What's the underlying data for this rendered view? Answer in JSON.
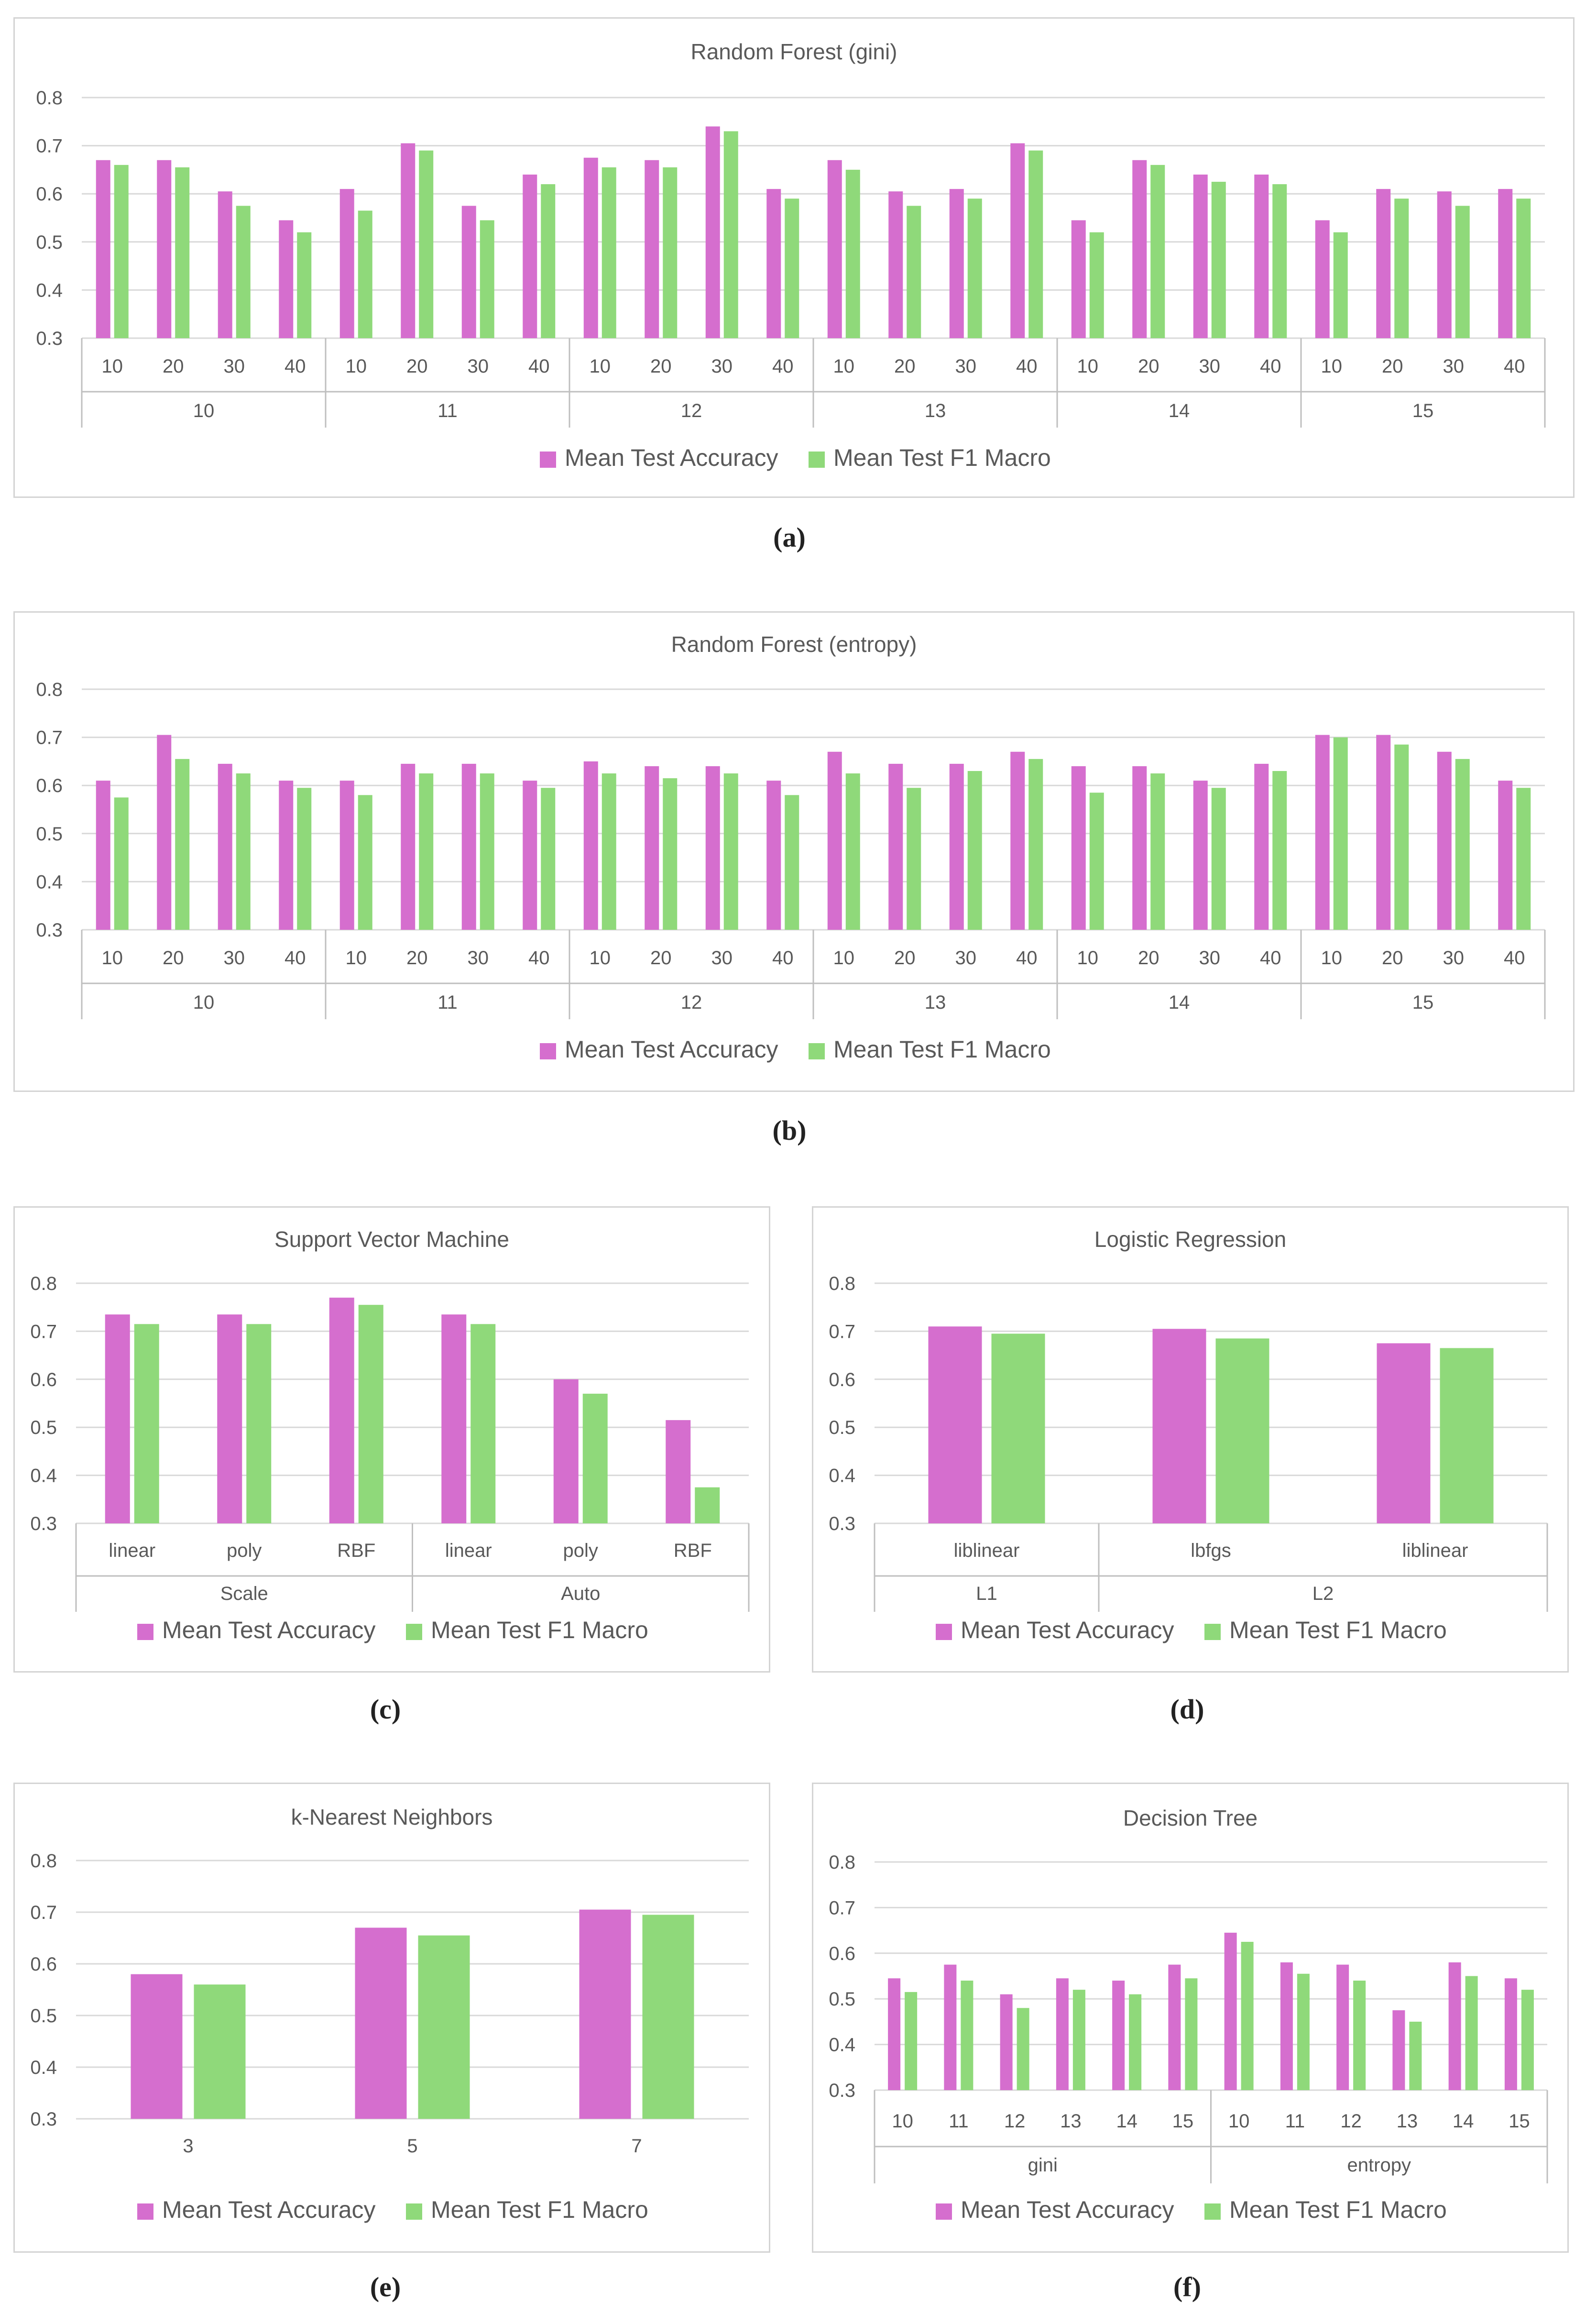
{
  "colors": {
    "accuracy": "#d56ece",
    "f1": "#8fd97a",
    "grid": "#d9d9d9",
    "text": "#595959",
    "axis": "#bfbfbf"
  },
  "legend": {
    "accuracy": "Mean Test Accuracy",
    "f1": "Mean Test F1 Macro"
  },
  "captions": {
    "a": "(a)",
    "b": "(b)",
    "c": "(c)",
    "d": "(d)",
    "e": "(e)",
    "f": "(f)"
  },
  "chart_data": [
    {
      "id": "a",
      "type": "bar",
      "title": "Random Forest (gini)",
      "ylim": [
        0.3,
        0.8
      ],
      "yticks": [
        "0.3",
        "0.4",
        "0.5",
        "0.6",
        "0.7",
        "0.8"
      ],
      "categories": [
        "10",
        "20",
        "30",
        "40",
        "10",
        "20",
        "30",
        "40",
        "10",
        "20",
        "30",
        "40",
        "10",
        "20",
        "30",
        "40",
        "10",
        "20",
        "30",
        "40",
        "10",
        "20",
        "30",
        "40"
      ],
      "groups": [
        "10",
        "11",
        "12",
        "13",
        "14",
        "15"
      ],
      "series": [
        {
          "name": "Mean Test Accuracy",
          "values": [
            0.67,
            0.67,
            0.605,
            0.545,
            0.61,
            0.705,
            0.575,
            0.64,
            0.675,
            0.67,
            0.74,
            0.61,
            0.67,
            0.605,
            0.61,
            0.705,
            0.545,
            0.67,
            0.64,
            0.64,
            0.545,
            0.61,
            0.605,
            0.61
          ]
        },
        {
          "name": "Mean Test F1 Macro",
          "values": [
            0.66,
            0.655,
            0.575,
            0.52,
            0.565,
            0.69,
            0.545,
            0.62,
            0.655,
            0.655,
            0.73,
            0.59,
            0.65,
            0.575,
            0.59,
            0.69,
            0.52,
            0.66,
            0.625,
            0.62,
            0.52,
            0.59,
            0.575,
            0.59
          ]
        }
      ]
    },
    {
      "id": "b",
      "type": "bar",
      "title": "Random Forest (entropy)",
      "ylim": [
        0.3,
        0.8
      ],
      "yticks": [
        "0.3",
        "0.4",
        "0.5",
        "0.6",
        "0.7",
        "0.8"
      ],
      "categories": [
        "10",
        "20",
        "30",
        "40",
        "10",
        "20",
        "30",
        "40",
        "10",
        "20",
        "30",
        "40",
        "10",
        "20",
        "30",
        "40",
        "10",
        "20",
        "30",
        "40",
        "10",
        "20",
        "30",
        "40"
      ],
      "groups": [
        "10",
        "11",
        "12",
        "13",
        "14",
        "15"
      ],
      "series": [
        {
          "name": "Mean Test Accuracy",
          "values": [
            0.61,
            0.705,
            0.645,
            0.61,
            0.61,
            0.645,
            0.645,
            0.61,
            0.65,
            0.64,
            0.64,
            0.61,
            0.67,
            0.645,
            0.645,
            0.67,
            0.64,
            0.64,
            0.61,
            0.645,
            0.705,
            0.705,
            0.67,
            0.61
          ]
        },
        {
          "name": "Mean Test F1 Macro",
          "values": [
            0.575,
            0.655,
            0.625,
            0.595,
            0.58,
            0.625,
            0.625,
            0.595,
            0.625,
            0.615,
            0.625,
            0.58,
            0.625,
            0.595,
            0.63,
            0.655,
            0.585,
            0.625,
            0.595,
            0.63,
            0.7,
            0.685,
            0.655,
            0.595
          ]
        }
      ]
    },
    {
      "id": "c",
      "type": "bar",
      "title": "Support Vector Machine",
      "ylim": [
        0.3,
        0.8
      ],
      "yticks": [
        "0.3",
        "0.4",
        "0.5",
        "0.6",
        "0.7",
        "0.8"
      ],
      "categories": [
        "linear",
        "poly",
        "RBF",
        "linear",
        "poly",
        "RBF"
      ],
      "groups": [
        "Scale",
        "Auto"
      ],
      "series": [
        {
          "name": "Mean Test Accuracy",
          "values": [
            0.735,
            0.735,
            0.77,
            0.735,
            0.6,
            0.515
          ]
        },
        {
          "name": "Mean Test F1 Macro",
          "values": [
            0.715,
            0.715,
            0.755,
            0.715,
            0.57,
            0.375
          ]
        }
      ]
    },
    {
      "id": "d",
      "type": "bar",
      "title": "Logistic Regression",
      "ylim": [
        0.3,
        0.8
      ],
      "yticks": [
        "0.3",
        "0.4",
        "0.5",
        "0.6",
        "0.7",
        "0.8"
      ],
      "categories": [
        "liblinear",
        "lbfgs",
        "liblinear"
      ],
      "groups": [
        "L1",
        "L2"
      ],
      "group_sizes": [
        1,
        2
      ],
      "series": [
        {
          "name": "Mean Test Accuracy",
          "values": [
            0.71,
            0.705,
            0.675
          ]
        },
        {
          "name": "Mean Test F1 Macro",
          "values": [
            0.695,
            0.685,
            0.665
          ]
        }
      ]
    },
    {
      "id": "e",
      "type": "bar",
      "title": "k-Nearest Neighbors",
      "ylim": [
        0.3,
        0.8
      ],
      "yticks": [
        "0.3",
        "0.4",
        "0.5",
        "0.6",
        "0.7",
        "0.8"
      ],
      "categories": [
        "3",
        "5",
        "7"
      ],
      "groups": [],
      "series": [
        {
          "name": "Mean Test Accuracy",
          "values": [
            0.58,
            0.67,
            0.705
          ]
        },
        {
          "name": "Mean Test F1 Macro",
          "values": [
            0.56,
            0.655,
            0.695
          ]
        }
      ]
    },
    {
      "id": "f",
      "type": "bar",
      "title": "Decision Tree",
      "ylim": [
        0.3,
        0.8
      ],
      "yticks": [
        "0.3",
        "0.4",
        "0.5",
        "0.6",
        "0.7",
        "0.8"
      ],
      "categories": [
        "10",
        "11",
        "12",
        "13",
        "14",
        "15",
        "10",
        "11",
        "12",
        "13",
        "14",
        "15"
      ],
      "groups": [
        "gini",
        "entropy"
      ],
      "series": [
        {
          "name": "Mean Test Accuracy",
          "values": [
            0.545,
            0.575,
            0.51,
            0.545,
            0.54,
            0.575,
            0.645,
            0.58,
            0.575,
            0.475,
            0.58,
            0.545
          ]
        },
        {
          "name": "Mean Test F1 Macro",
          "values": [
            0.515,
            0.54,
            0.48,
            0.52,
            0.51,
            0.545,
            0.625,
            0.555,
            0.54,
            0.45,
            0.55,
            0.52
          ]
        }
      ]
    }
  ]
}
